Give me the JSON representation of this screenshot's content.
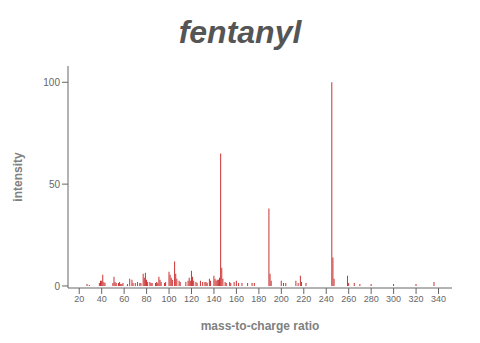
{
  "chart_data": {
    "type": "bar",
    "title": "fentanyl",
    "xlabel": "mass-to-charge ratio",
    "ylabel": "intensity",
    "x": [
      27,
      29,
      38,
      39,
      40,
      41,
      42,
      43,
      50,
      51,
      52,
      53,
      55,
      56,
      57,
      58,
      59,
      63,
      65,
      67,
      68,
      70,
      72,
      74,
      75,
      77,
      78,
      79,
      80,
      81,
      83,
      84,
      85,
      88,
      89,
      90,
      91,
      92,
      93,
      96,
      97,
      100,
      101,
      102,
      103,
      105,
      106,
      107,
      109,
      110,
      115,
      117,
      118,
      119,
      120,
      121,
      122,
      124,
      125,
      128,
      130,
      132,
      133,
      134,
      136,
      137,
      140,
      141,
      142,
      143,
      144,
      145,
      146,
      147,
      148,
      150,
      151,
      154,
      155,
      158,
      160,
      162,
      165,
      170,
      174,
      176,
      189,
      190,
      191,
      200,
      202,
      204,
      213,
      215,
      217,
      218,
      222,
      245,
      246,
      247,
      259,
      260,
      265,
      270,
      280,
      300,
      320,
      336
    ],
    "values": [
      1.0,
      0.5,
      1.5,
      2.5,
      2.5,
      5.5,
      2.0,
      1.5,
      1.5,
      4.5,
      2.0,
      1.5,
      1.5,
      2.0,
      1.0,
      1.0,
      1.5,
      1.0,
      3.5,
      3.0,
      1.5,
      1.5,
      2.0,
      1.5,
      1.5,
      6.0,
      4.0,
      6.5,
      3.0,
      2.0,
      2.0,
      1.5,
      1.5,
      1.5,
      2.0,
      1.5,
      4.5,
      3.0,
      2.0,
      1.5,
      2.0,
      7.0,
      5.5,
      4.0,
      3.0,
      12.0,
      6.0,
      3.5,
      2.5,
      2.0,
      2.0,
      2.5,
      4.0,
      2.5,
      7.5,
      4.5,
      2.5,
      2.0,
      1.5,
      2.5,
      2.0,
      2.0,
      2.0,
      1.5,
      3.5,
      2.5,
      5.0,
      3.5,
      2.5,
      3.0,
      3.0,
      4.0,
      65.0,
      9.0,
      3.5,
      2.0,
      1.5,
      2.0,
      1.5,
      2.0,
      2.5,
      1.5,
      1.5,
      1.5,
      1.5,
      1.5,
      38.0,
      6.0,
      2.5,
      2.5,
      1.5,
      1.5,
      2.5,
      1.5,
      5.0,
      2.0,
      1.5,
      100.0,
      14.0,
      3.5,
      5.0,
      1.5,
      1.5,
      1.0,
      1.0,
      1.0,
      1.0,
      2.0
    ],
    "color": "#cc3333",
    "xlim": [
      10,
      352
    ],
    "ylim": [
      -1,
      108
    ],
    "xticks": [
      20,
      40,
      60,
      80,
      100,
      120,
      140,
      160,
      180,
      200,
      220,
      240,
      260,
      280,
      300,
      320,
      340
    ],
    "yticks": [
      0,
      50,
      100
    ],
    "grid": false
  }
}
